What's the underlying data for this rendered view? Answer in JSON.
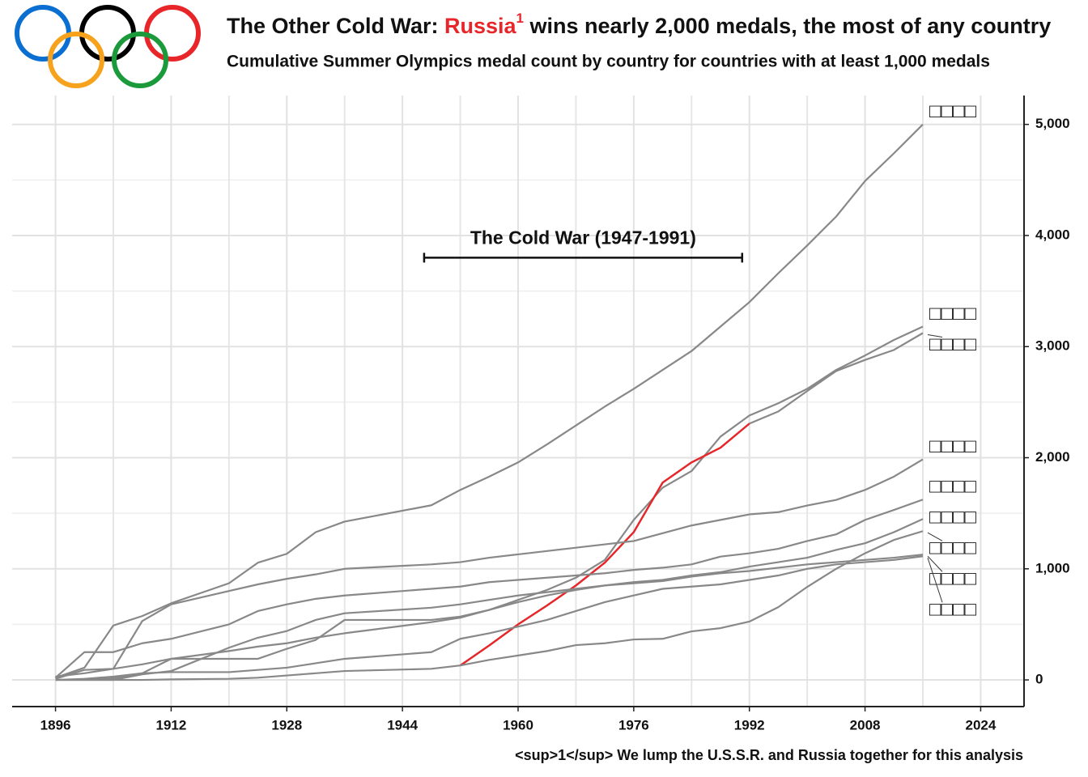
{
  "chart_data": {
    "type": "line",
    "title_parts": [
      "The Other Cold War: ",
      "Russia",
      "1",
      " wins nearly 2,000 medals, the most of any country"
    ],
    "subtitle": "Cumulative Summer Olympics medal count by country for countries with at least 1,000 medals",
    "footnote": "<sup>1</sup> We lump the U.S.S.R. and Russia together for this analysis",
    "annotation": {
      "text": "The Cold War (1947-1991)",
      "x": [
        1947,
        1991
      ],
      "y": 3800
    },
    "x": [
      1896,
      1900,
      1904,
      1908,
      1912,
      1920,
      1924,
      1928,
      1932,
      1936,
      1948,
      1952,
      1956,
      1960,
      1964,
      1968,
      1972,
      1976,
      1980,
      1984,
      1988,
      1992,
      1996,
      2000,
      2004,
      2008,
      2012,
      2016
    ],
    "xlim": [
      1890,
      2030
    ],
    "xticks": [
      1896,
      1912,
      1928,
      1944,
      1960,
      1976,
      1992,
      2008,
      2024
    ],
    "minor_xticks": [
      1904,
      1920,
      1936,
      1952,
      1968,
      1984,
      2000,
      2016
    ],
    "ylim": [
      -240,
      5260
    ],
    "yticks": [
      0,
      {
        "value": 1000,
        "label": "1,000"
      },
      {
        "value": 2000,
        "label": "2,000"
      },
      {
        "value": 3000,
        "label": "3,000"
      },
      {
        "value": 4000,
        "label": "4,000"
      },
      {
        "value": 5000,
        "label": "5,000"
      }
    ],
    "minor_yticks": [
      500,
      1500,
      2500,
      3500,
      4500
    ],
    "grid": true,
    "series": [
      {
        "name": "□□□□",
        "color": "#888888",
        "values": [
          20,
          110,
          490,
          575,
          690,
          870,
          1055,
          1135,
          1330,
          1425,
          1572,
          1710,
          1830,
          1958,
          2120,
          2290,
          2460,
          2620,
          2790,
          2960,
          3180,
          3400,
          3660,
          3910,
          4170,
          4490,
          4740,
          5000
        ]
      },
      {
        "name": "□□□□",
        "color": "#888888",
        "values": [
          30,
          60,
          100,
          140,
          190,
          190,
          190,
          280,
          360,
          540,
          540,
          570,
          630,
          720,
          810,
          920,
          1080,
          1440,
          1730,
          1880,
          2190,
          2380,
          2490,
          2620,
          2790,
          2920,
          3060,
          3180
        ]
      },
      {
        "name": "□□□□",
        "color": "#888888",
        "highlight": {
          "color": "#e8262a",
          "from": 1952,
          "to": 1992
        },
        "values": [
          null,
          null,
          null,
          null,
          null,
          null,
          null,
          null,
          null,
          null,
          null,
          130,
          310,
          500,
          670,
          850,
          1055,
          1330,
          1776,
          1958,
          2090,
          2307,
          2416,
          2600,
          2780,
          2880,
          2970,
          3122
        ]
      },
      {
        "name": "□□□□",
        "color": "#888888",
        "values": [
          10,
          90,
          100,
          530,
          680,
          800,
          860,
          910,
          950,
          1000,
          1040,
          1060,
          1100,
          1130,
          1160,
          1190,
          1220,
          1250,
          1320,
          1390,
          1440,
          1490,
          1510,
          1570,
          1620,
          1710,
          1830,
          1985
        ]
      },
      {
        "name": "□□□□",
        "color": "#888888",
        "values": [
          20,
          250,
          250,
          330,
          370,
          500,
          620,
          680,
          730,
          760,
          820,
          840,
          880,
          900,
          920,
          940,
          960,
          990,
          1010,
          1040,
          1110,
          1140,
          1180,
          1250,
          1310,
          1440,
          1530,
          1623
        ]
      },
      {
        "name": "□□□□",
        "color": "#888888",
        "values": [
          0,
          0,
          0,
          50,
          80,
          290,
          380,
          440,
          540,
          600,
          650,
          680,
          720,
          760,
          790,
          820,
          850,
          880,
          900,
          940,
          970,
          1020,
          1060,
          1100,
          1170,
          1230,
          1330,
          1448
        ]
      },
      {
        "name": "□□□□",
        "color": "#888888",
        "values": [
          0,
          0,
          0,
          0,
          5,
          10,
          20,
          40,
          60,
          80,
          100,
          130,
          180,
          220,
          260,
          313,
          330,
          364,
          370,
          437,
          466,
          525,
          655,
          837,
          1000,
          1140,
          1260,
          1339
        ]
      },
      {
        "name": "□□□□",
        "color": "#888888",
        "values": [
          0,
          5,
          15,
          60,
          190,
          260,
          300,
          330,
          380,
          420,
          520,
          560,
          630,
          700,
          760,
          810,
          850,
          870,
          890,
          930,
          960,
          980,
          1010,
          1040,
          1060,
          1080,
          1100,
          1128
        ]
      },
      {
        "name": "□□□□",
        "color": "#888888",
        "values": [
          0,
          10,
          30,
          60,
          70,
          70,
          90,
          110,
          150,
          190,
          250,
          370,
          420,
          480,
          540,
          620,
          700,
          760,
          820,
          840,
          860,
          900,
          940,
          1000,
          1040,
          1060,
          1080,
          1113
        ]
      }
    ]
  }
}
